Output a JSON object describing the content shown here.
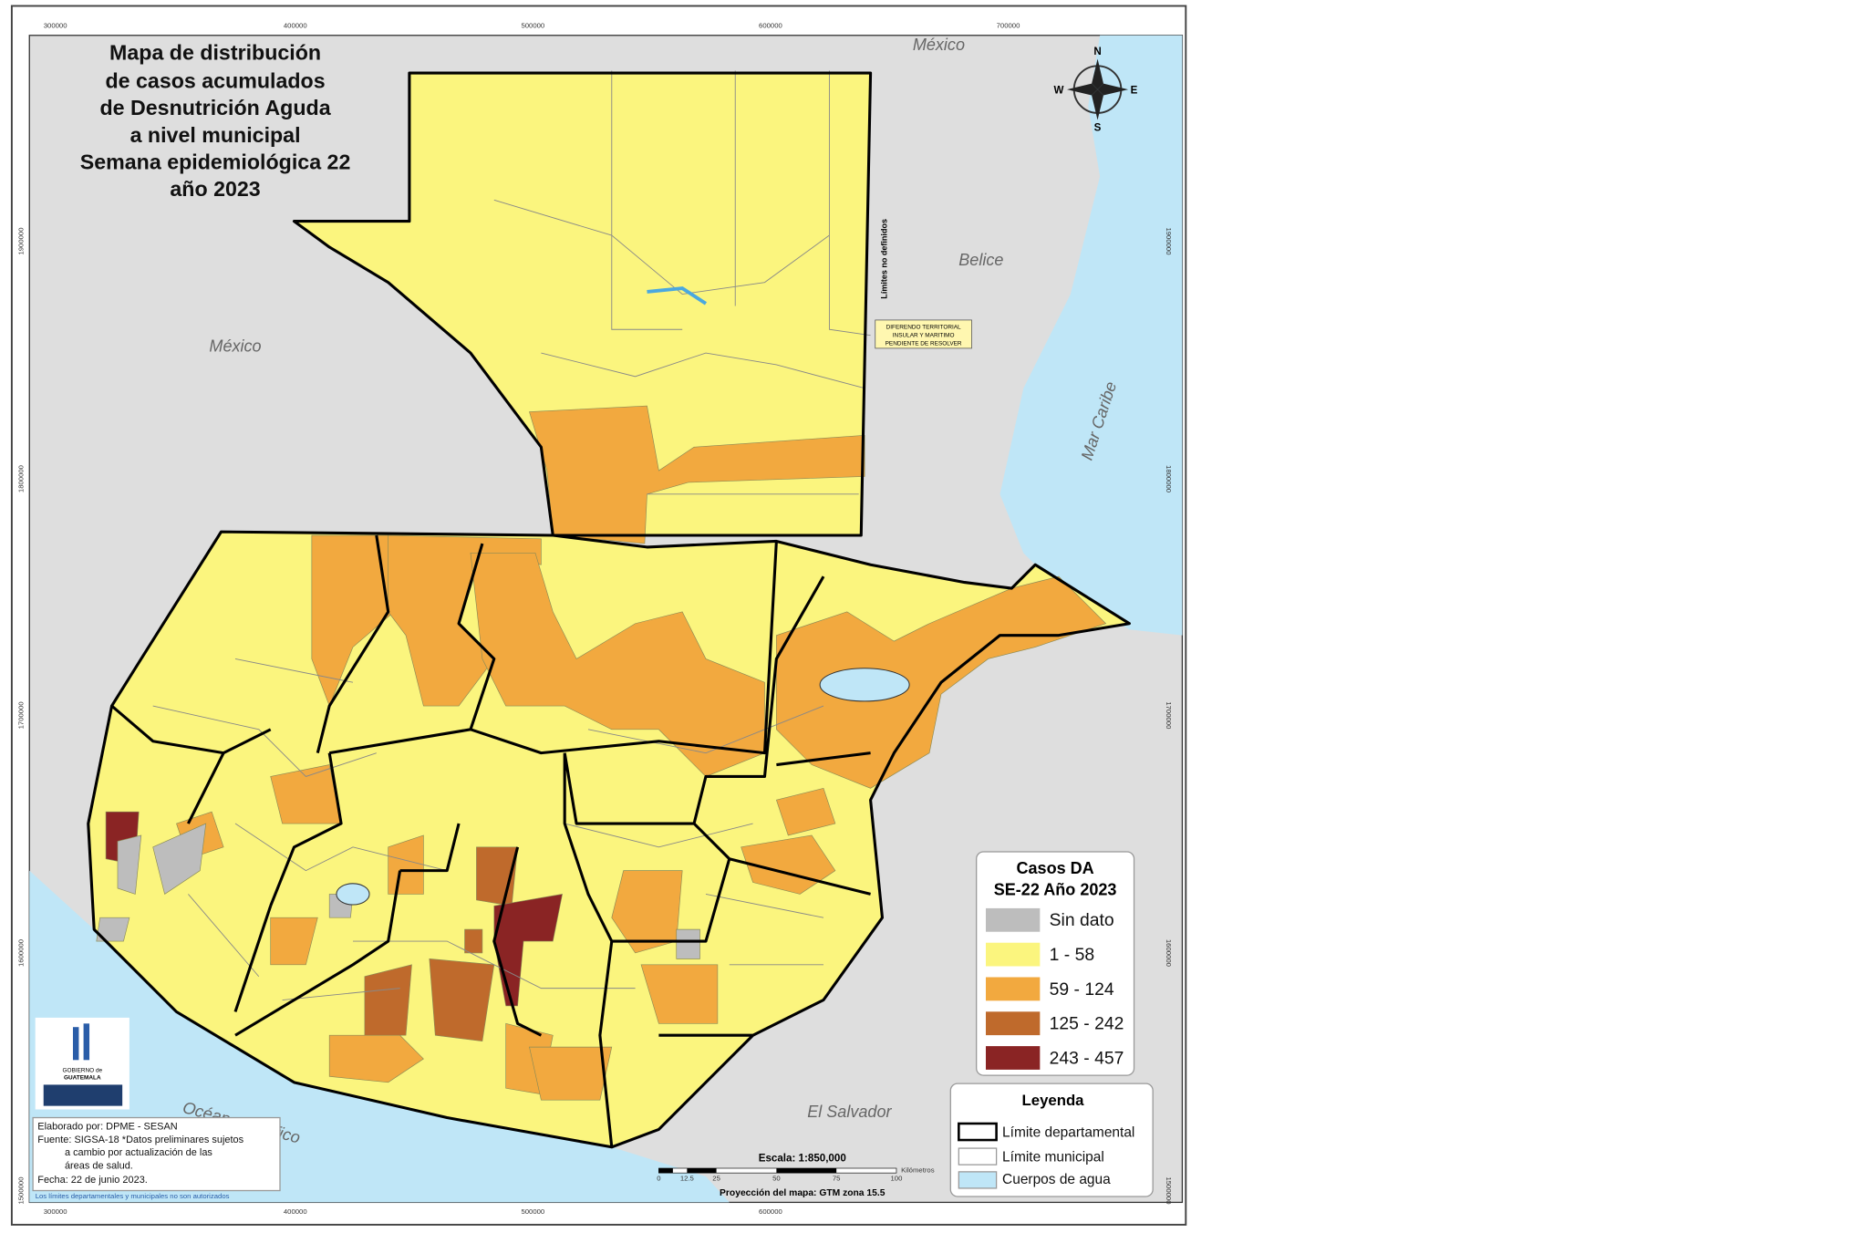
{
  "title": [
    "Mapa de distribución",
    "de casos acumulados",
    "de Desnutrición Aguda",
    "a nivel municipal",
    "Semana epidemiológica 22",
    "año 2023"
  ],
  "grid": {
    "x": [
      "300000",
      "400000",
      "500000",
      "600000",
      "700000"
    ],
    "y": [
      "1900000",
      "1800000",
      "1700000",
      "1600000",
      "1500000"
    ]
  },
  "places": {
    "mexico_north": "México",
    "mexico_west": "México",
    "belize": "Belice",
    "caribbean": "Mar Caribe",
    "el_salvador": "El Salvador",
    "pacific": "Océano Pacífico",
    "undefined_limits": "Límites no definidos",
    "dispute": [
      "DIFERENDO TERRITORIAL",
      "INSULAR Y MARITIMO",
      "PENDIENTE DE RESOLVER"
    ]
  },
  "compass": {
    "n": "N",
    "s": "S",
    "e": "E",
    "w": "W"
  },
  "legend_cases": {
    "title": [
      "Casos DA",
      "SE-22 Año 2023"
    ],
    "items": [
      {
        "label": "Sin dato",
        "color": "#bdbdbd"
      },
      {
        "label": "1 - 58",
        "color": "#fbf57e"
      },
      {
        "label": "59 - 124",
        "color": "#f2a93f"
      },
      {
        "label": "125 - 242",
        "color": "#bf6a2c"
      },
      {
        "label": "243 - 457",
        "color": "#8a2424"
      }
    ]
  },
  "legend": {
    "title": "Leyenda",
    "items": [
      {
        "label": "Límite departamental",
        "color": "#ffffff"
      },
      {
        "label": "Límite municipal",
        "color": "#ffffff"
      },
      {
        "label": "Cuerpos de agua",
        "color": "#bfe6f7"
      }
    ]
  },
  "credits": [
    "Elaborado por: DPME - SESAN",
    "Fuente: SIGSA-18 *Datos preliminares sujetos",
    "a cambio por actualización de las",
    "áreas de salud.",
    "Fecha: 22 de junio 2023."
  ],
  "note": "Los límites departamentales y municipales no son autorizados",
  "logo": [
    "GOBIERNO de",
    "GUATEMALA"
  ],
  "scale": {
    "title": "Escala: 1:850,000",
    "ticks": [
      "0",
      "12.5",
      "25",
      "50",
      "75",
      "100"
    ],
    "unit": "Kilómetros",
    "projection": "Proyección del mapa: GTM zona 15.5"
  }
}
